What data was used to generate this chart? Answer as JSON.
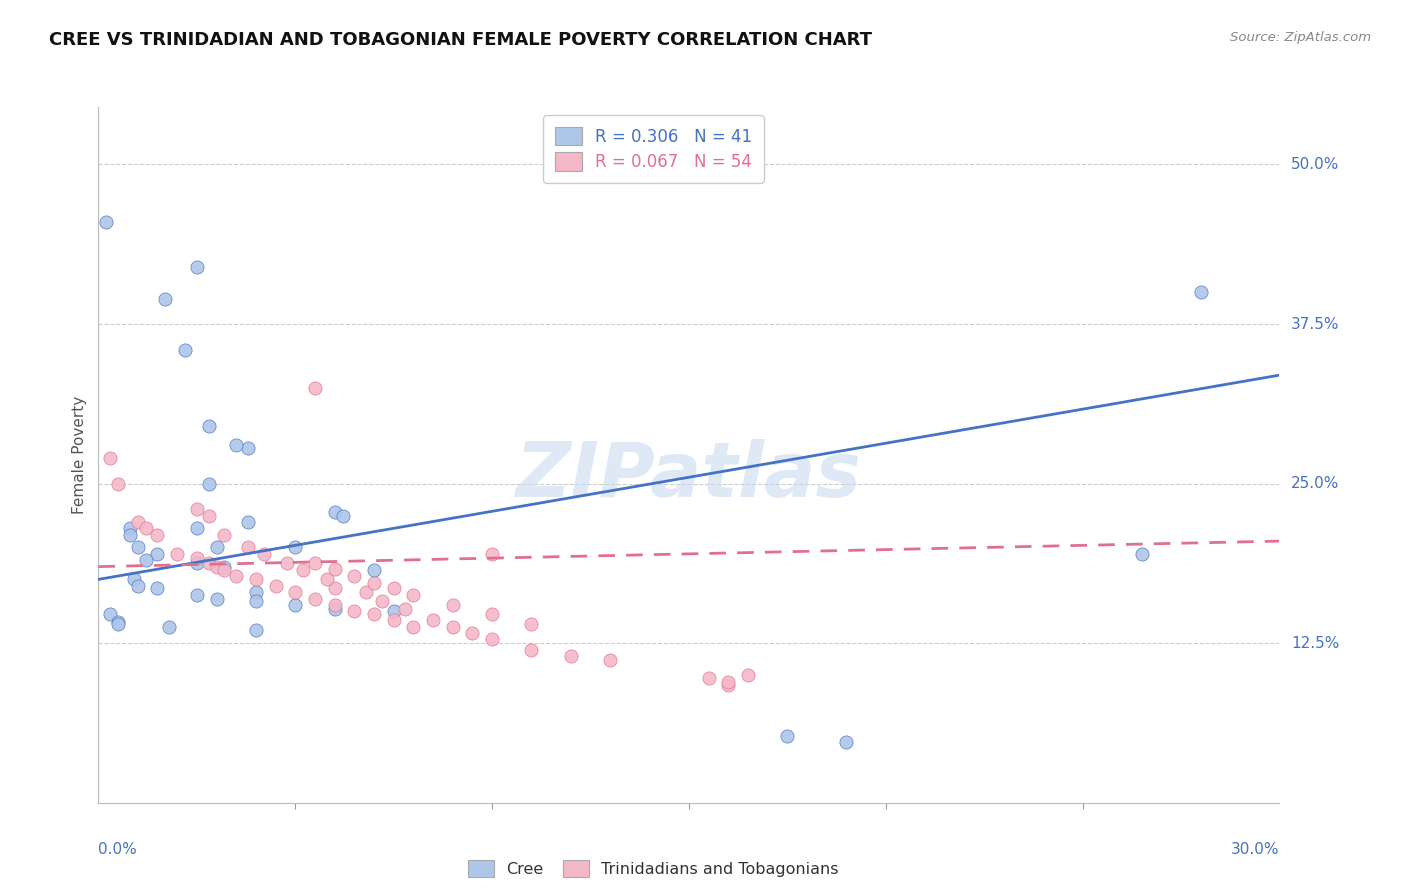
{
  "title": "CREE VS TRINIDADIAN AND TOBAGONIAN FEMALE POVERTY CORRELATION CHART",
  "source": "Source: ZipAtlas.com",
  "ylabel": "Female Poverty",
  "ytick_labels": [
    "12.5%",
    "25.0%",
    "37.5%",
    "50.0%"
  ],
  "ytick_values": [
    0.125,
    0.25,
    0.375,
    0.5
  ],
  "xlim": [
    0.0,
    0.3
  ],
  "ylim": [
    0.0,
    0.545
  ],
  "watermark": "ZIPatlas",
  "cree_color": "#aec6e8",
  "cree_line_color": "#4472c4",
  "tnt_color": "#f4b8c8",
  "tnt_line_color": "#e07090",
  "cree_line_x0": 0.0,
  "cree_line_y0": 0.175,
  "cree_line_x1": 0.3,
  "cree_line_y1": 0.335,
  "tnt_line_x0": 0.0,
  "tnt_line_y0": 0.185,
  "tnt_line_x1": 0.3,
  "tnt_line_y1": 0.205,
  "cree_x": [
    0.002,
    0.025,
    0.017,
    0.022,
    0.028,
    0.038,
    0.008,
    0.008,
    0.01,
    0.05,
    0.015,
    0.012,
    0.025,
    0.032,
    0.06,
    0.07,
    0.009,
    0.01,
    0.04,
    0.025,
    0.03,
    0.038,
    0.05,
    0.06,
    0.075,
    0.003,
    0.005,
    0.025,
    0.035,
    0.028,
    0.062,
    0.005,
    0.018,
    0.03,
    0.04,
    0.015,
    0.04,
    0.175,
    0.19,
    0.265,
    0.28
  ],
  "cree_y": [
    0.455,
    0.42,
    0.395,
    0.355,
    0.295,
    0.278,
    0.215,
    0.21,
    0.2,
    0.2,
    0.195,
    0.19,
    0.188,
    0.185,
    0.228,
    0.182,
    0.175,
    0.17,
    0.165,
    0.163,
    0.16,
    0.22,
    0.155,
    0.152,
    0.15,
    0.148,
    0.142,
    0.215,
    0.28,
    0.25,
    0.225,
    0.14,
    0.138,
    0.2,
    0.158,
    0.168,
    0.135,
    0.052,
    0.048,
    0.195,
    0.4
  ],
  "tnt_x": [
    0.003,
    0.005,
    0.01,
    0.012,
    0.015,
    0.02,
    0.025,
    0.028,
    0.03,
    0.032,
    0.035,
    0.04,
    0.045,
    0.05,
    0.055,
    0.06,
    0.065,
    0.07,
    0.075,
    0.08,
    0.055,
    0.1,
    0.06,
    0.025,
    0.028,
    0.032,
    0.038,
    0.042,
    0.048,
    0.052,
    0.058,
    0.068,
    0.072,
    0.078,
    0.085,
    0.09,
    0.095,
    0.1,
    0.11,
    0.12,
    0.13,
    0.055,
    0.06,
    0.065,
    0.07,
    0.075,
    0.08,
    0.09,
    0.1,
    0.11,
    0.155,
    0.16,
    0.16,
    0.165
  ],
  "tnt_y": [
    0.27,
    0.25,
    0.22,
    0.215,
    0.21,
    0.195,
    0.192,
    0.188,
    0.185,
    0.182,
    0.178,
    0.175,
    0.17,
    0.165,
    0.16,
    0.155,
    0.15,
    0.148,
    0.143,
    0.138,
    0.325,
    0.195,
    0.168,
    0.23,
    0.225,
    0.21,
    0.2,
    0.195,
    0.188,
    0.182,
    0.175,
    0.165,
    0.158,
    0.152,
    0.143,
    0.138,
    0.133,
    0.128,
    0.12,
    0.115,
    0.112,
    0.188,
    0.183,
    0.178,
    0.172,
    0.168,
    0.163,
    0.155,
    0.148,
    0.14,
    0.098,
    0.092,
    0.095,
    0.1
  ]
}
